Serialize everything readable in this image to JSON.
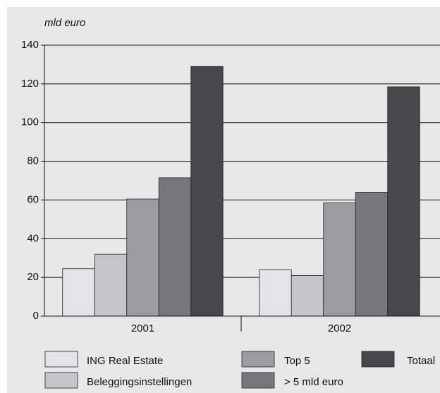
{
  "chart_data": {
    "type": "bar",
    "y_label": "mld euro",
    "categories": [
      "2001",
      "2002"
    ],
    "series": [
      {
        "name": "ING Real Estate",
        "color": "#e4e4e6",
        "values": [
          24.5,
          24
        ]
      },
      {
        "name": "Beleggingsinstellingen",
        "color": "#c6c6c8",
        "values": [
          32,
          21
        ]
      },
      {
        "name": "Top 5",
        "color": "#9a9c9f",
        "values": [
          60.5,
          58.5
        ]
      },
      {
        "name": "> 5 mld euro",
        "color": "#76777a",
        "values": [
          71.5,
          64
        ]
      },
      {
        "name": "Totaal",
        "color": "#48484a",
        "values": [
          129,
          118.5
        ]
      }
    ],
    "ylim": [
      0,
      140
    ],
    "yticks": [
      0,
      20,
      40,
      60,
      80,
      100,
      120,
      140
    ],
    "grid": true
  }
}
